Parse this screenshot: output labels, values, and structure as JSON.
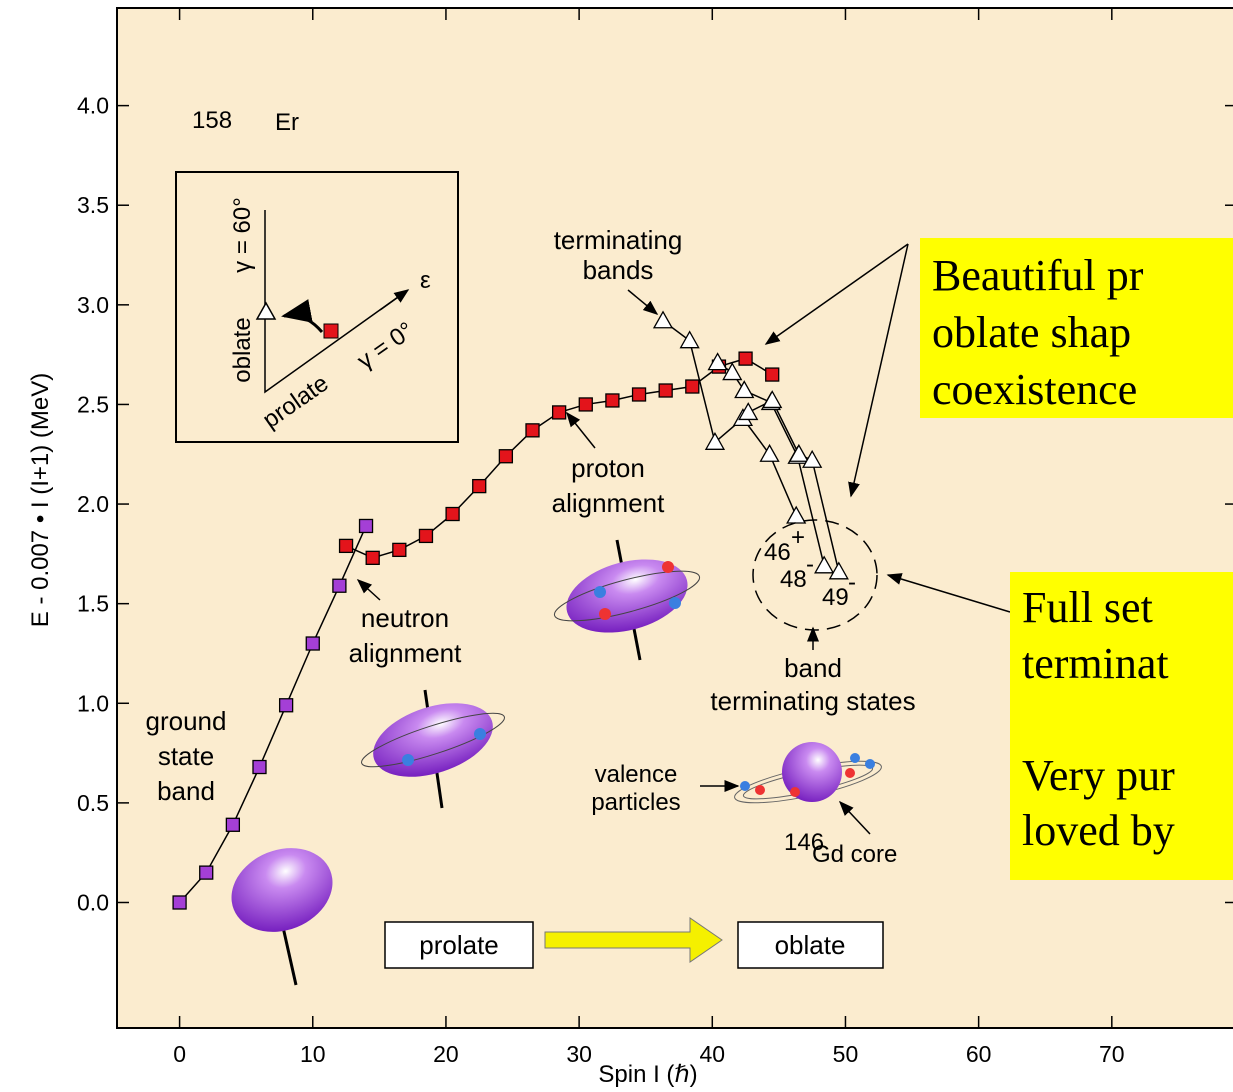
{
  "chart_data": {
    "type": "scatter",
    "x_label": "Spin I (ℏ)",
    "y_label": "E - 0.007 • I (I+1) (MeV)",
    "xlim": [
      -4.7,
      79.1
    ],
    "ylim": [
      -0.63,
      4.49
    ],
    "xticks": [
      0,
      10,
      20,
      30,
      40,
      50,
      60,
      70
    ],
    "yticks": [
      {
        "value": 0,
        "label": "0.0"
      },
      {
        "value": 0.5,
        "label": "0.5"
      },
      {
        "value": 1,
        "label": "1.0"
      },
      {
        "value": 1.5,
        "label": "1.5"
      },
      {
        "value": 2,
        "label": "2.0"
      },
      {
        "value": 2.5,
        "label": "2.5"
      },
      {
        "value": 3,
        "label": "3.0"
      },
      {
        "value": 3.5,
        "label": "3.5"
      },
      {
        "value": 4,
        "label": "4.0"
      }
    ],
    "series": [
      {
        "marker": "square",
        "color": "#a43fd6",
        "x": [
          0,
          2,
          4,
          6,
          8,
          10,
          12,
          14
        ],
        "values": [
          0.0,
          0.15,
          0.39,
          0.68,
          0.99,
          1.3,
          1.59,
          1.89
        ]
      },
      {
        "marker": "square",
        "color": "#e3141b",
        "x": [
          12.5,
          14.5,
          16.5,
          18.5,
          20.5,
          22.5,
          24.5,
          26.5,
          28.5,
          30.5,
          32.5,
          34.5,
          36.5,
          38.5,
          40.5,
          42.5,
          44.5
        ],
        "values": [
          1.79,
          1.73,
          1.77,
          1.84,
          1.95,
          2.09,
          2.24,
          2.37,
          2.46,
          2.5,
          2.52,
          2.55,
          2.57,
          2.59,
          2.69,
          2.73,
          2.65
        ]
      },
      {
        "marker": "triangle",
        "color": "#ffffff",
        "x": [
          36.3,
          38.3,
          40.2,
          42.3,
          44.3,
          46.3
        ],
        "values": [
          2.92,
          2.82,
          2.31,
          2.43,
          2.25,
          1.94
        ]
      },
      {
        "marker": "triangle",
        "color": "#ffffff",
        "x": [
          40.4,
          41.5,
          42.4,
          44.4,
          46.4,
          48.4
        ],
        "values": [
          2.71,
          2.66,
          2.57,
          2.51,
          2.24,
          1.69
        ]
      },
      {
        "marker": "triangle",
        "color": "#ffffff",
        "x": [
          42.7,
          44.5,
          46.5,
          47.5,
          49.5
        ],
        "values": [
          2.46,
          2.52,
          2.25,
          2.22,
          1.66
        ]
      }
    ],
    "annotations": {
      "isotope_mass": "158",
      "isotope_symbol": "Er",
      "terminating_bands": [
        "terminating",
        "bands"
      ],
      "proton_alignment": [
        "proton",
        "alignment"
      ],
      "neutron_alignment": [
        "neutron",
        "alignment"
      ],
      "ground_state_band": [
        "ground",
        "state",
        "band"
      ],
      "band_terminating_states": [
        "band",
        "terminating states"
      ],
      "valence_particles": [
        "valence",
        "particles"
      ],
      "core_mass": "146",
      "core_label": "Gd core",
      "state_46": "46",
      "state_46_parity": "+",
      "state_48": "48",
      "state_48_parity": "-",
      "state_49": "49",
      "state_49_parity": "-",
      "prolate_box": "prolate",
      "oblate_box": "oblate",
      "inset": {
        "oblate": "oblate",
        "prolate": "prolate",
        "gamma60": "γ = 60°",
        "gamma0": "γ = 0°",
        "epsilon": "ε"
      },
      "box1": [
        "Beautiful pr",
        "oblate shap",
        "coexistence"
      ],
      "box2": [
        "Full set",
        "terminat",
        "Very pur",
        "loved by"
      ]
    }
  }
}
